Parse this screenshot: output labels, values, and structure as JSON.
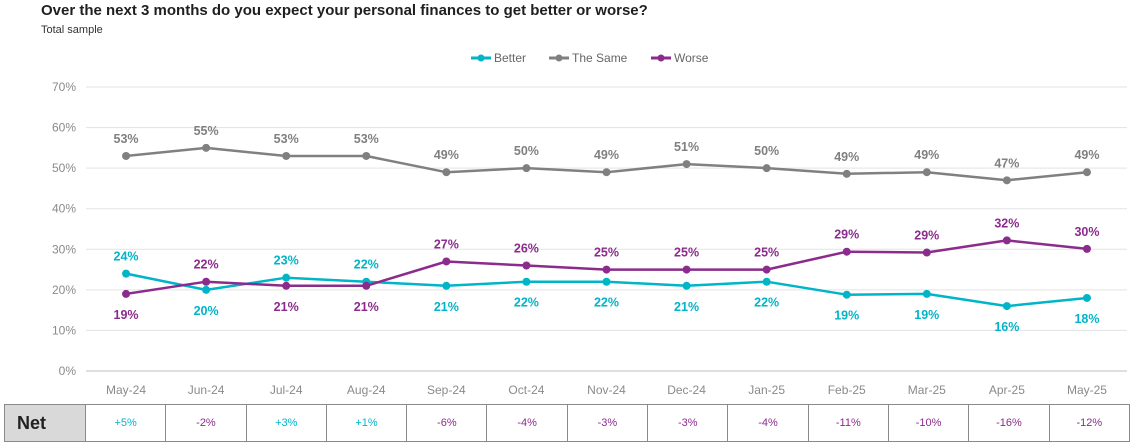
{
  "title": "Over the next 3 months do you expect your personal finances to get better or worse?",
  "subtitle": "Total sample",
  "colors": {
    "better": "#00b5c8",
    "same": "#808080",
    "worse": "#8b2c8c",
    "grid": "#e3e3e3",
    "axis_text": "#8a8a8a"
  },
  "chart_data": {
    "type": "line",
    "categories": [
      "May-24",
      "Jun-24",
      "Jul-24",
      "Aug-24",
      "Sep-24",
      "Oct-24",
      "Nov-24",
      "Dec-24",
      "Jan-25",
      "Feb-25",
      "Mar-25",
      "Apr-25",
      "May-25"
    ],
    "y_ticks": [
      "0%",
      "10%",
      "20%",
      "30%",
      "40%",
      "50%",
      "60%",
      "70%"
    ],
    "ylim": [
      0,
      70
    ],
    "legend_position": "top-center",
    "series": [
      {
        "name": "Better",
        "key": "better",
        "values": [
          24,
          20,
          23,
          22,
          21,
          22,
          22,
          21,
          22,
          18.8,
          19,
          16,
          18
        ],
        "labels": [
          "24%",
          "20%",
          "23%",
          "22%",
          "21%",
          "22%",
          "22%",
          "21%",
          "22%",
          "19%",
          "19%",
          "16%",
          "18%"
        ]
      },
      {
        "name": "The Same",
        "key": "same",
        "values": [
          53,
          55,
          53,
          53,
          49,
          50,
          49,
          51,
          50,
          48.6,
          49,
          47,
          49
        ],
        "labels": [
          "53%",
          "55%",
          "53%",
          "53%",
          "49%",
          "50%",
          "49%",
          "51%",
          "50%",
          "49%",
          "49%",
          "47%",
          "49%"
        ]
      },
      {
        "name": "Worse",
        "key": "worse",
        "values": [
          19,
          22,
          21,
          21,
          27,
          26,
          25,
          25,
          25,
          29.4,
          29.2,
          32.2,
          30.1
        ],
        "labels": [
          "19%",
          "22%",
          "21%",
          "21%",
          "27%",
          "26%",
          "25%",
          "25%",
          "25%",
          "29%",
          "29%",
          "32%",
          "30%"
        ]
      }
    ]
  },
  "net": {
    "label": "Net",
    "values": [
      "+5%",
      "-2%",
      "+3%",
      "+1%",
      "-6%",
      "-4%",
      "-3%",
      "-3%",
      "-4%",
      "-11%",
      "-10%",
      "-16%",
      "-12%"
    ]
  }
}
